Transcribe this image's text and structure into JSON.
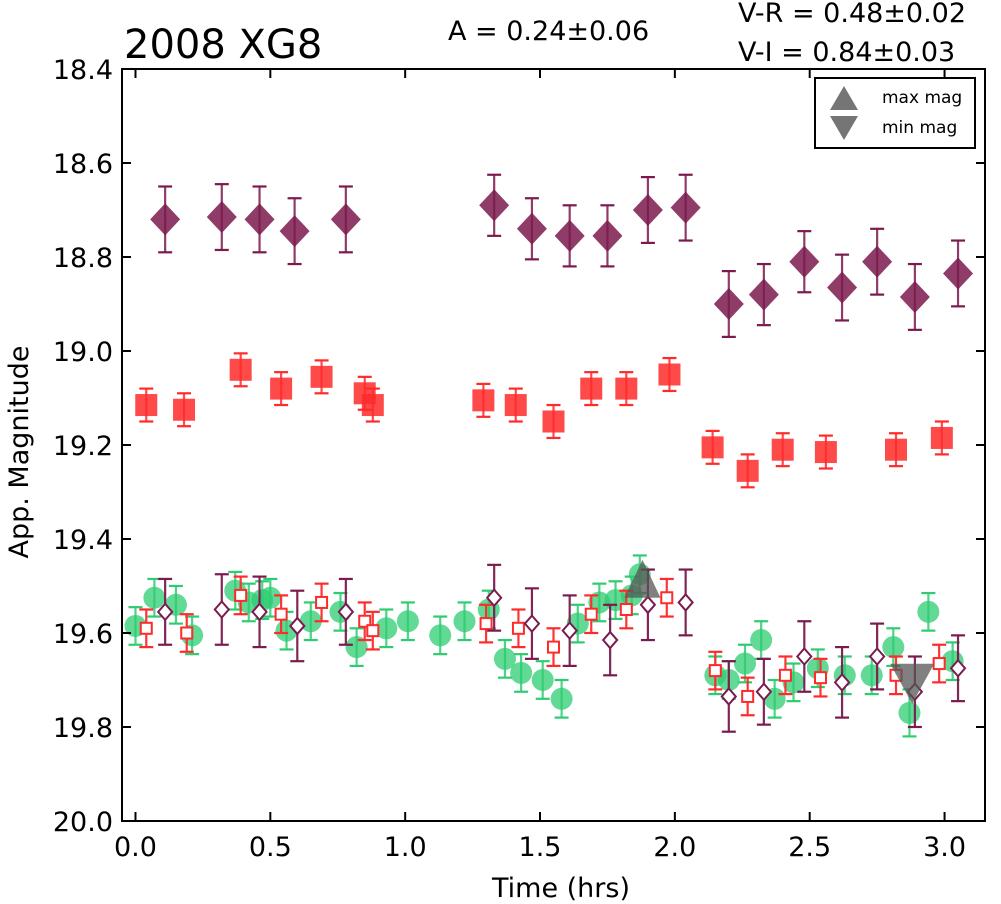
{
  "chart_data": {
    "type": "scatter",
    "title": "2008 XG8",
    "amplitude_text": "A  = 0.24±0.06",
    "color_text_1": "V-R = 0.48±0.02",
    "color_text_2": "V-I  = 0.84±0.03",
    "xlabel": "Time (hrs)",
    "ylabel": "App. Magnitude",
    "xlim": [
      -0.05,
      3.15
    ],
    "ylim": [
      20.0,
      18.4
    ],
    "y_inverted": true,
    "xticks": [
      "0.0",
      "0.5",
      "1.0",
      "1.5",
      "2.0",
      "2.5",
      "3.0"
    ],
    "yticks": [
      "18.4",
      "18.6",
      "18.8",
      "19.0",
      "19.2",
      "19.4",
      "19.6",
      "19.8",
      "20.0"
    ],
    "legend": {
      "position": "top-right",
      "entries": [
        {
          "label": "max mag",
          "marker": "triangle-up",
          "color": "#666666"
        },
        {
          "label": "min mag",
          "marker": "triangle-down",
          "color": "#666666"
        }
      ]
    },
    "series": [
      {
        "marker": "diamond-filled",
        "color": "#7b1a4e",
        "x": [
          0.11,
          0.32,
          0.46,
          0.59,
          0.78,
          1.33,
          1.47,
          1.61,
          1.75,
          1.9,
          2.04,
          2.2,
          2.33,
          2.48,
          2.62,
          2.75,
          2.89,
          3.05
        ],
        "y": [
          18.72,
          18.715,
          18.72,
          18.745,
          18.72,
          18.69,
          18.74,
          18.755,
          18.755,
          18.7,
          18.695,
          18.9,
          18.88,
          18.81,
          18.865,
          18.81,
          18.885,
          18.835
        ],
        "err": [
          0.07,
          0.07,
          0.07,
          0.07,
          0.07,
          0.065,
          0.065,
          0.065,
          0.065,
          0.07,
          0.07,
          0.07,
          0.065,
          0.065,
          0.07,
          0.07,
          0.07,
          0.07
        ]
      },
      {
        "marker": "square-filled",
        "color": "#ff2a2a",
        "x": [
          0.04,
          0.18,
          0.39,
          0.54,
          0.69,
          0.85,
          0.88,
          1.29,
          1.41,
          1.55,
          1.69,
          1.82,
          1.98,
          2.14,
          2.27,
          2.4,
          2.56,
          2.82,
          2.99
        ],
        "y": [
          19.115,
          19.125,
          19.04,
          19.08,
          19.055,
          19.09,
          19.115,
          19.105,
          19.115,
          19.15,
          19.08,
          19.08,
          19.05,
          19.205,
          19.255,
          19.21,
          19.215,
          19.21,
          19.185
        ],
        "err": [
          0.035,
          0.035,
          0.035,
          0.035,
          0.035,
          0.035,
          0.035,
          0.035,
          0.035,
          0.035,
          0.035,
          0.035,
          0.035,
          0.035,
          0.035,
          0.035,
          0.035,
          0.035,
          0.035
        ]
      },
      {
        "marker": "circle-filled",
        "color": "#2ecc71",
        "x": [
          0.0,
          0.07,
          0.15,
          0.21,
          0.37,
          0.42,
          0.47,
          0.5,
          0.56,
          0.65,
          0.76,
          0.82,
          0.93,
          1.01,
          1.13,
          1.22,
          1.31,
          1.37,
          1.43,
          1.51,
          1.58,
          1.64,
          1.72,
          1.78,
          1.84,
          1.87,
          2.15,
          2.2,
          2.26,
          2.32,
          2.37,
          2.44,
          2.53,
          2.63,
          2.73,
          2.81,
          2.87,
          2.94,
          3.03
        ],
        "y": [
          19.585,
          19.525,
          19.54,
          19.605,
          19.51,
          19.535,
          19.53,
          19.525,
          19.595,
          19.575,
          19.555,
          19.63,
          19.59,
          19.575,
          19.605,
          19.575,
          19.55,
          19.655,
          19.685,
          19.7,
          19.74,
          19.58,
          19.535,
          19.53,
          19.52,
          19.475,
          19.69,
          19.7,
          19.665,
          19.615,
          19.74,
          19.705,
          19.675,
          19.69,
          19.69,
          19.63,
          19.77,
          19.555,
          19.66
        ],
        "err": [
          0.04,
          0.04,
          0.04,
          0.04,
          0.04,
          0.04,
          0.04,
          0.04,
          0.04,
          0.04,
          0.04,
          0.04,
          0.04,
          0.04,
          0.04,
          0.04,
          0.04,
          0.04,
          0.04,
          0.04,
          0.04,
          0.04,
          0.04,
          0.04,
          0.04,
          0.04,
          0.04,
          0.04,
          0.04,
          0.04,
          0.04,
          0.04,
          0.04,
          0.04,
          0.04,
          0.04,
          0.05,
          0.04,
          0.04
        ]
      },
      {
        "marker": "square-open",
        "color": "#ff2a2a",
        "x": [
          0.04,
          0.19,
          0.39,
          0.54,
          0.69,
          0.85,
          0.88,
          1.3,
          1.42,
          1.55,
          1.69,
          1.82,
          1.97,
          2.15,
          2.27,
          2.41,
          2.54,
          2.82,
          2.98
        ],
        "y": [
          19.59,
          19.6,
          19.52,
          19.56,
          19.535,
          19.575,
          19.595,
          19.58,
          19.59,
          19.63,
          19.56,
          19.55,
          19.525,
          19.68,
          19.735,
          19.69,
          19.695,
          19.69,
          19.665
        ],
        "err": [
          0.04,
          0.04,
          0.04,
          0.04,
          0.04,
          0.04,
          0.04,
          0.04,
          0.04,
          0.04,
          0.04,
          0.04,
          0.04,
          0.04,
          0.04,
          0.04,
          0.04,
          0.04,
          0.04
        ]
      },
      {
        "marker": "diamond-open",
        "color": "#7b1a4e",
        "x": [
          0.11,
          0.32,
          0.46,
          0.6,
          0.78,
          1.33,
          1.47,
          1.61,
          1.76,
          1.9,
          2.04,
          2.2,
          2.33,
          2.48,
          2.62,
          2.75,
          2.89,
          3.05
        ],
        "y": [
          19.555,
          19.55,
          19.555,
          19.585,
          19.555,
          19.525,
          19.58,
          19.595,
          19.615,
          19.54,
          19.535,
          19.735,
          19.725,
          19.65,
          19.705,
          19.65,
          19.725,
          19.675
        ],
        "err": [
          0.07,
          0.075,
          0.075,
          0.075,
          0.07,
          0.07,
          0.075,
          0.075,
          0.075,
          0.075,
          0.07,
          0.075,
          0.07,
          0.075,
          0.075,
          0.07,
          0.075,
          0.07
        ]
      }
    ],
    "markers": [
      {
        "label": "max mag",
        "x": 1.88,
        "y": 19.525
      },
      {
        "label": "min mag",
        "x": 2.88,
        "y": 19.725
      }
    ]
  }
}
